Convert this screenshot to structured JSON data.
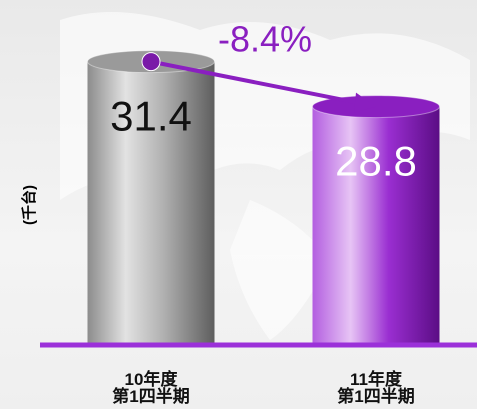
{
  "chart_data": {
    "type": "bar",
    "categories": [
      "10年度\n第1四半期",
      "11年度\n第1四半期"
    ],
    "values": [
      31.4,
      28.8
    ],
    "colors": [
      "#9a9a9a",
      "#8a1fc0"
    ],
    "y_label": "(千台)",
    "annotation": "-8.4%",
    "ylim": [
      15,
      33
    ]
  }
}
